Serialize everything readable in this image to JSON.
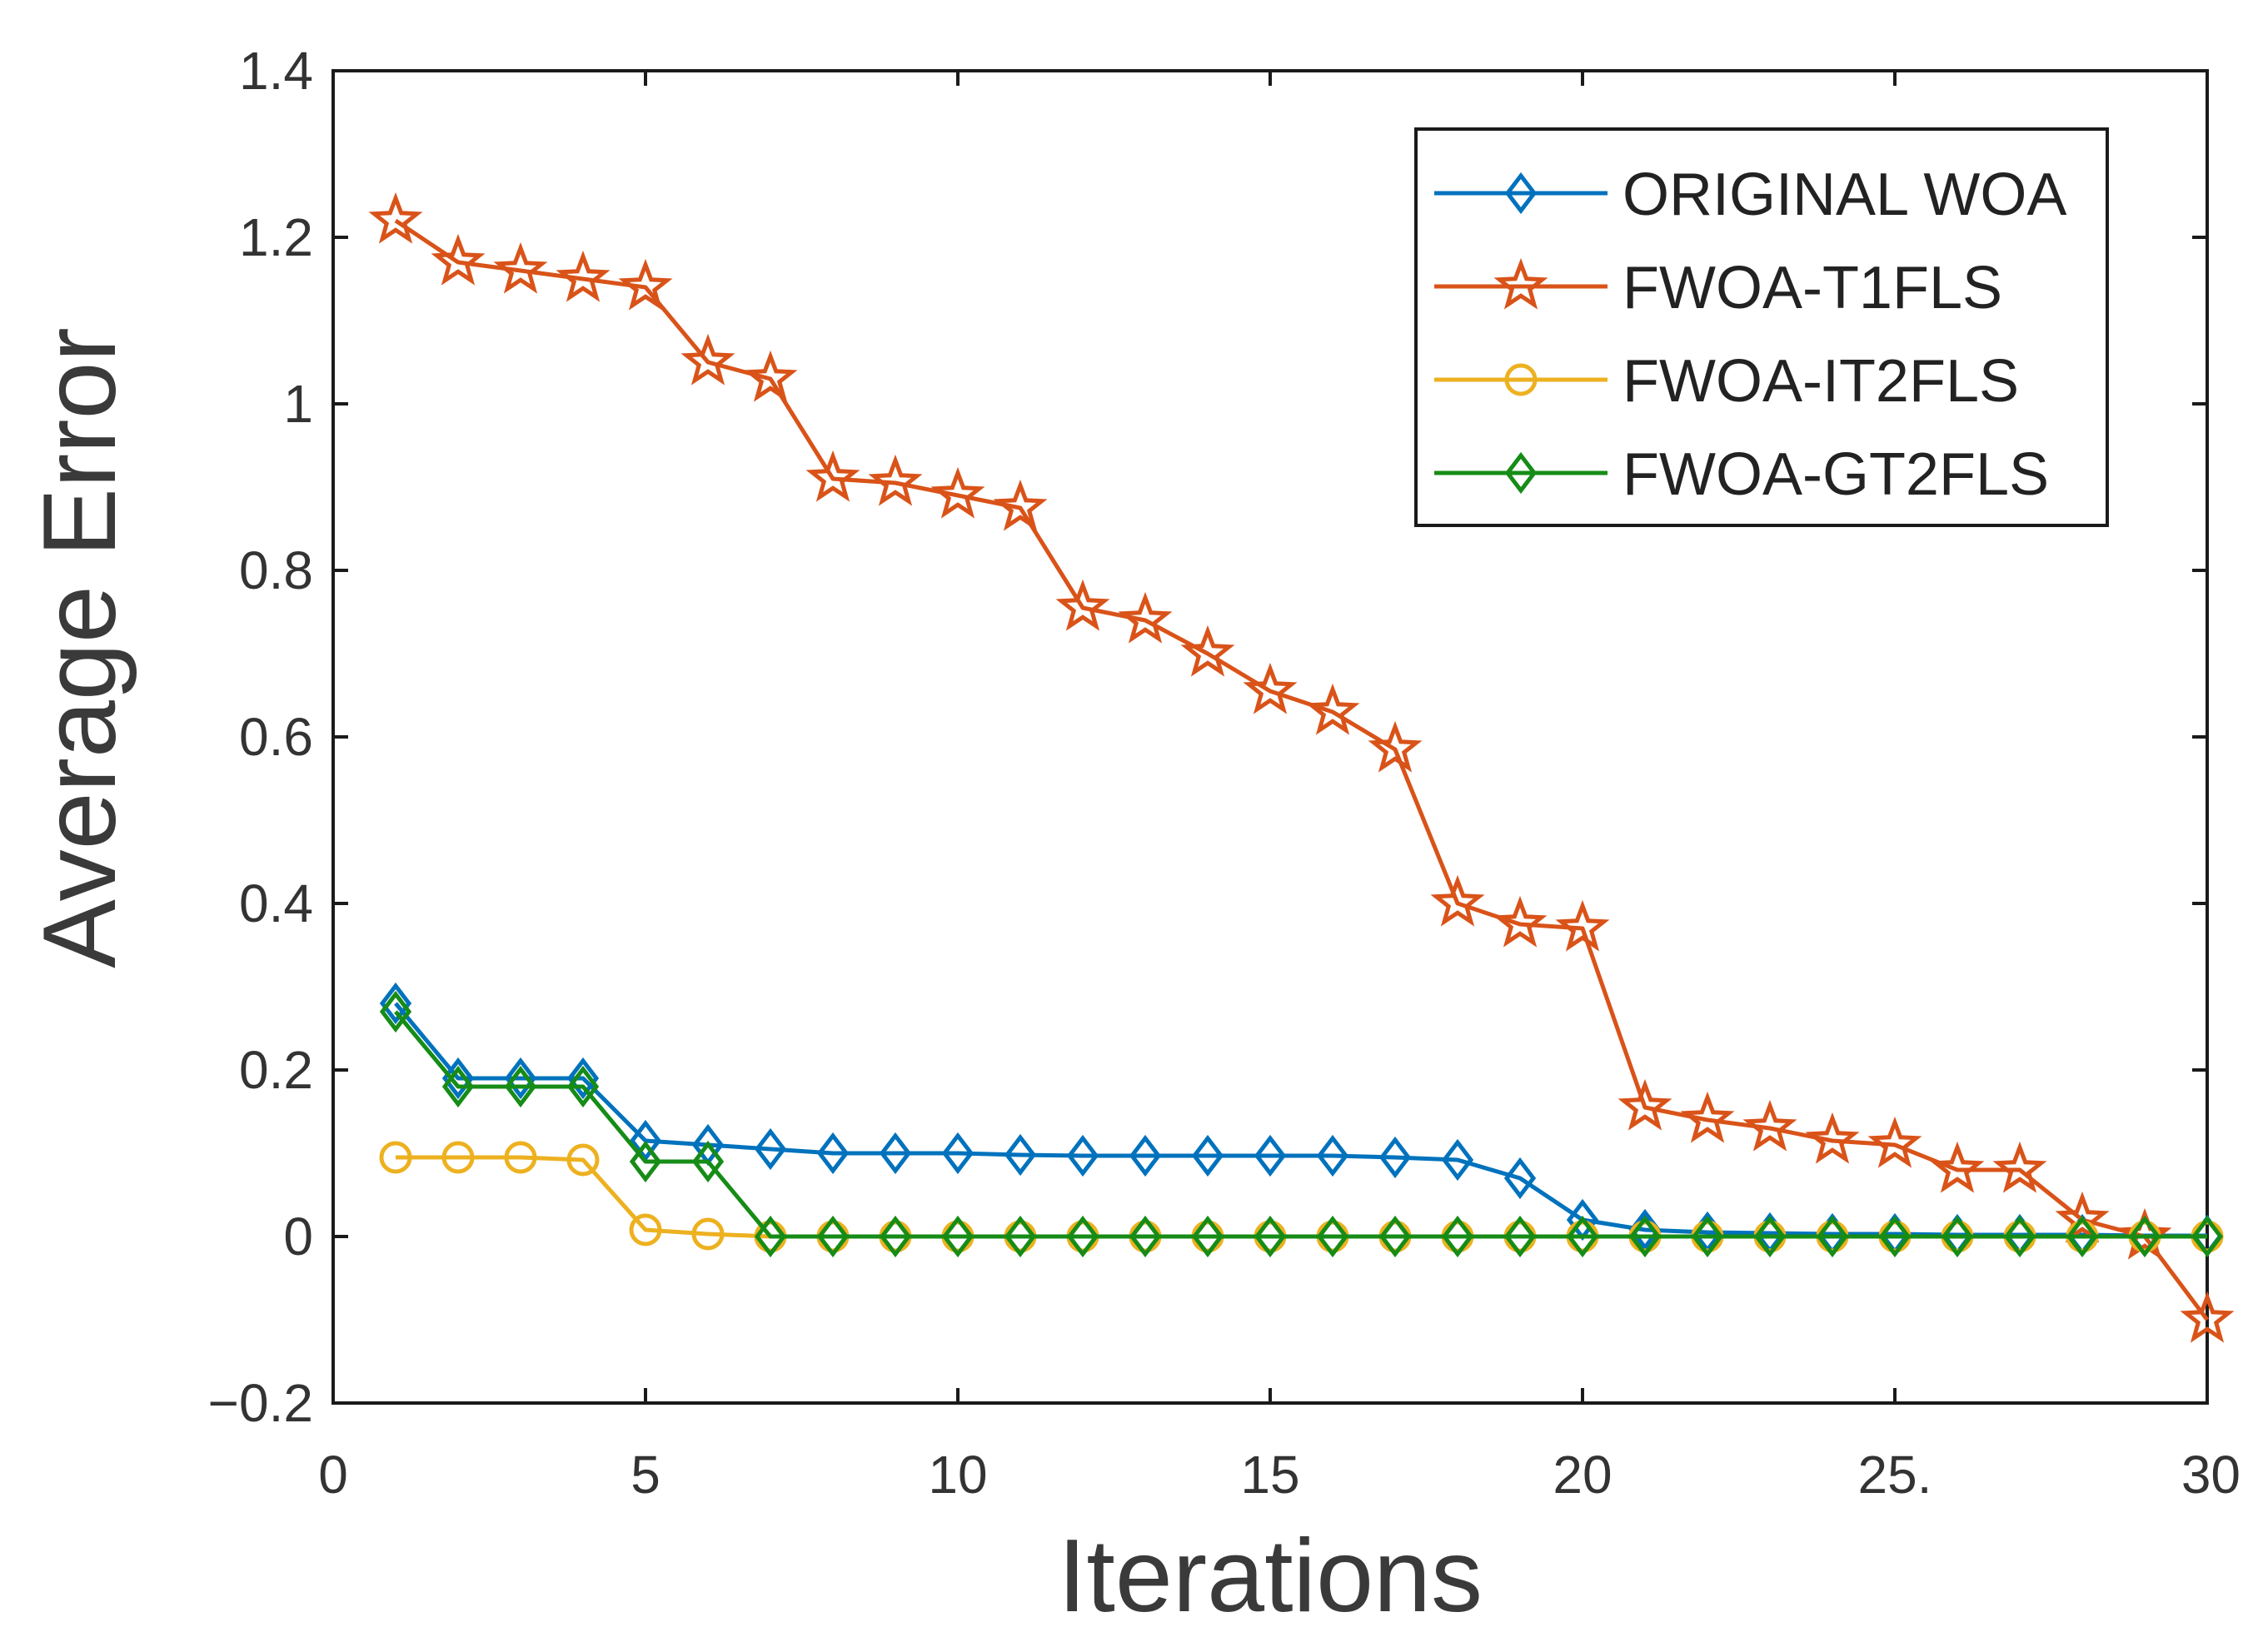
{
  "chart_data": {
    "type": "line",
    "xlabel": "Iterations",
    "ylabel": "Average Error",
    "xlim": [
      0,
      30
    ],
    "ylim": [
      -0.2,
      1.4
    ],
    "xticks": [
      0,
      5,
      10,
      15,
      20,
      25,
      30
    ],
    "xtick_labels": [
      "0",
      "5",
      "10",
      "15",
      "20",
      "25.",
      "30"
    ],
    "yticks": [
      -0.2,
      0,
      0.2,
      0.4,
      0.6,
      0.8,
      1,
      1.2,
      1.4
    ],
    "ytick_labels": [
      "−0.2",
      "0",
      "0.2",
      "0.4",
      "0.6",
      "0.8",
      "1",
      "1.2",
      "1.4"
    ],
    "grid": false,
    "legend_position": "top-right",
    "x": [
      1,
      2,
      3,
      4,
      5,
      6,
      7,
      8,
      9,
      10,
      11,
      12,
      13,
      14,
      15,
      16,
      17,
      18,
      19,
      20,
      21,
      22,
      23,
      24,
      25,
      26,
      27,
      28,
      29,
      30
    ],
    "series": [
      {
        "name": "ORIGINAL WOA",
        "color": "#0072BD",
        "marker": "diamond",
        "values": [
          0.28,
          0.19,
          0.19,
          0.19,
          0.115,
          0.11,
          0.105,
          0.1,
          0.1,
          0.1,
          0.098,
          0.097,
          0.097,
          0.097,
          0.097,
          0.097,
          0.095,
          0.092,
          0.07,
          0.02,
          0.008,
          0.005,
          0.004,
          0.003,
          0.003,
          0.002,
          0.002,
          0.002,
          0.001,
          0.001
        ]
      },
      {
        "name": "FWOA-T1FLS",
        "color": "#D95319",
        "marker": "star",
        "values": [
          1.22,
          1.17,
          1.16,
          1.15,
          1.14,
          1.05,
          1.03,
          0.91,
          0.905,
          0.89,
          0.875,
          0.755,
          0.74,
          0.7,
          0.655,
          0.63,
          0.585,
          0.4,
          0.375,
          0.37,
          0.155,
          0.14,
          0.13,
          0.115,
          0.11,
          0.08,
          0.08,
          0.02,
          0.0,
          -0.1
        ]
      },
      {
        "name": "FWOA-IT2FLS",
        "color": "#EDB120",
        "marker": "circle",
        "values": [
          0.095,
          0.095,
          0.095,
          0.092,
          0.008,
          0.003,
          0,
          0,
          0,
          0,
          0,
          0,
          0,
          0,
          0,
          0,
          0,
          0,
          0,
          0,
          0,
          0,
          0,
          0,
          0,
          0,
          0,
          0,
          0,
          0
        ]
      },
      {
        "name": "FWOA-GT2FLS",
        "color": "#168C17",
        "marker": "diamond",
        "values": [
          0.27,
          0.18,
          0.18,
          0.18,
          0.09,
          0.09,
          0,
          0,
          0,
          0,
          0,
          0,
          0,
          0,
          0,
          0,
          0,
          0,
          0,
          0,
          0,
          0,
          0,
          0,
          0,
          0,
          0,
          0,
          0,
          0
        ]
      }
    ]
  }
}
